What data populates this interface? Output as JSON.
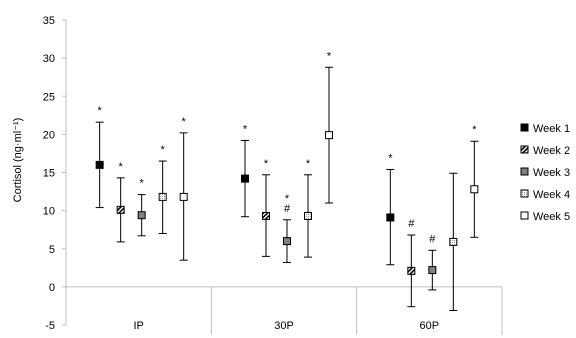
{
  "chart_data": {
    "type": "scatter",
    "ylabel": "Cortisol (ng·ml⁻¹)",
    "ylim": [
      -5,
      35
    ],
    "yticks": [
      35,
      30,
      25,
      20,
      15,
      10,
      5,
      0,
      -5
    ],
    "categories": [
      "IP",
      "30P",
      "60P"
    ],
    "legend_position": "right",
    "grid": false,
    "series": [
      {
        "name": "Week 1",
        "marker": "filled-black",
        "values": [
          16.0,
          14.2,
          9.1
        ],
        "err_low": [
          10.4,
          9.2,
          2.9
        ],
        "err_high": [
          21.6,
          19.2,
          15.4
        ],
        "annotations": [
          "*",
          "*",
          "*"
        ]
      },
      {
        "name": "Week 2",
        "marker": "half-black",
        "values": [
          10.1,
          9.3,
          2.1
        ],
        "err_low": [
          5.9,
          4.0,
          -2.6
        ],
        "err_high": [
          14.3,
          14.7,
          6.8
        ],
        "annotations": [
          "*",
          "*",
          "#"
        ]
      },
      {
        "name": "Week 3",
        "marker": "filled-gray",
        "values": [
          9.4,
          6.0,
          2.2
        ],
        "err_low": [
          6.7,
          3.2,
          -0.4
        ],
        "err_high": [
          12.1,
          8.8,
          4.8
        ],
        "annotations": [
          "*",
          "*\n#",
          "#"
        ]
      },
      {
        "name": "Week 4",
        "marker": "dotted-white",
        "values": [
          11.8,
          9.3,
          5.9
        ],
        "err_low": [
          7.0,
          3.9,
          -3.1
        ],
        "err_high": [
          16.5,
          14.7,
          14.9
        ],
        "annotations": [
          "*",
          "*",
          ""
        ]
      },
      {
        "name": "Week 5",
        "marker": "open-white",
        "values": [
          11.8,
          19.9,
          12.8
        ],
        "err_low": [
          3.5,
          11.0,
          6.5
        ],
        "err_high": [
          20.2,
          28.8,
          19.1
        ],
        "annotations": [
          "*",
          "*",
          "*"
        ]
      }
    ]
  }
}
